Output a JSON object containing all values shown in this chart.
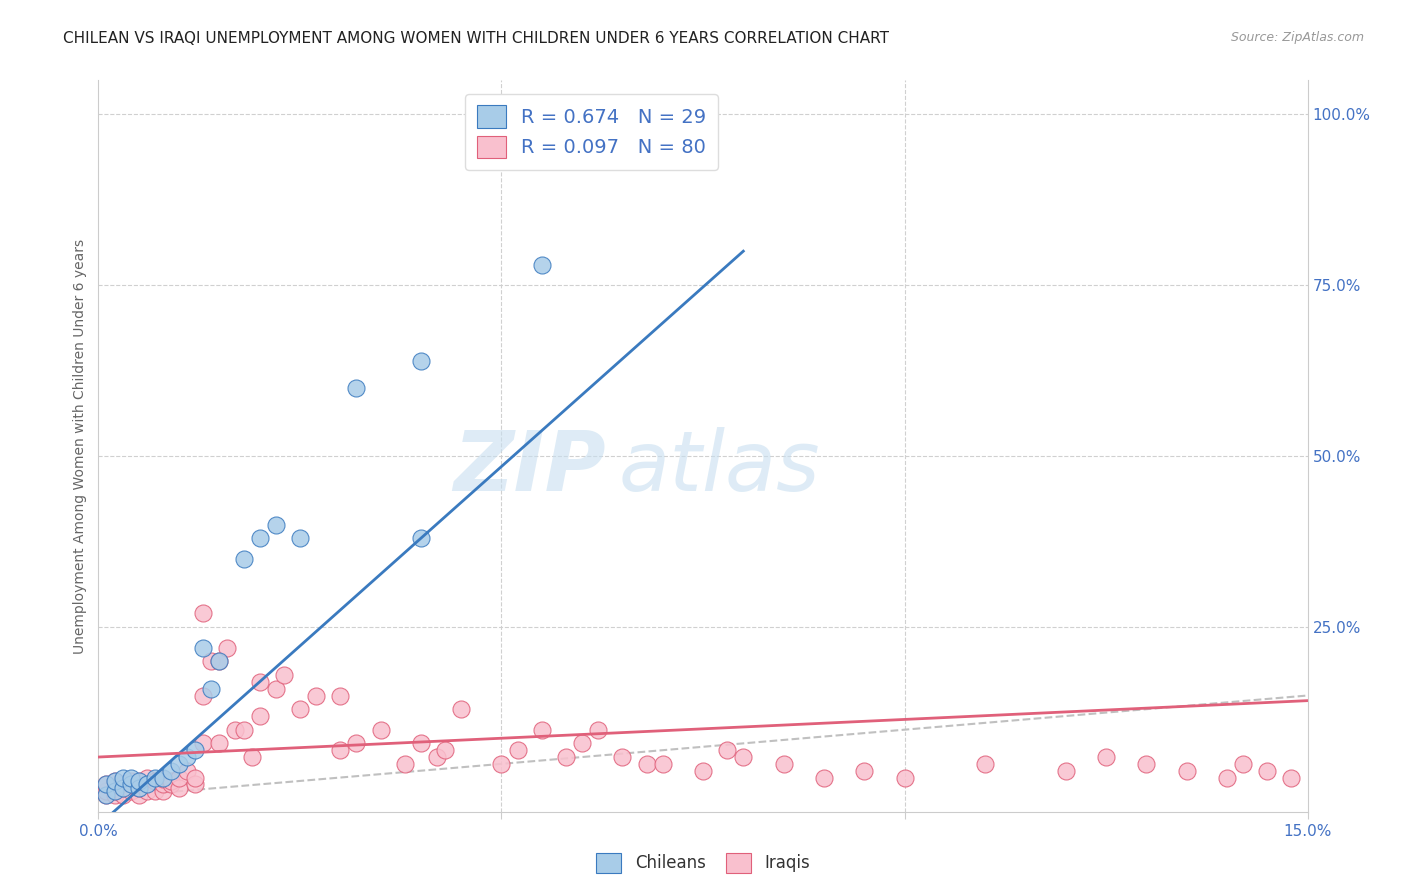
{
  "title": "CHILEAN VS IRAQI UNEMPLOYMENT AMONG WOMEN WITH CHILDREN UNDER 6 YEARS CORRELATION CHART",
  "source": "Source: ZipAtlas.com",
  "ylabel": "Unemployment Among Women with Children Under 6 years",
  "xlim": [
    0.0,
    0.15
  ],
  "ylim": [
    -0.02,
    1.05
  ],
  "chilean_color": "#a8cce8",
  "iraqi_color": "#f9c0ce",
  "chilean_line_color": "#3a7abf",
  "iraqi_line_color": "#e0607a",
  "diagonal_color": "#c0c0c0",
  "legend_R_chilean": "0.674",
  "legend_N_chilean": "29",
  "legend_R_iraqi": "0.097",
  "legend_N_iraqi": "80",
  "watermark_zip": "ZIP",
  "watermark_atlas": "atlas",
  "chilean_x": [
    0.001,
    0.001,
    0.002,
    0.002,
    0.003,
    0.003,
    0.004,
    0.004,
    0.005,
    0.005,
    0.006,
    0.007,
    0.008,
    0.009,
    0.01,
    0.011,
    0.012,
    0.013,
    0.014,
    0.015,
    0.018,
    0.02,
    0.022,
    0.025,
    0.032,
    0.04,
    0.04,
    0.055,
    0.06
  ],
  "chilean_y": [
    0.005,
    0.02,
    0.01,
    0.025,
    0.015,
    0.03,
    0.02,
    0.03,
    0.015,
    0.025,
    0.02,
    0.03,
    0.03,
    0.04,
    0.05,
    0.06,
    0.07,
    0.22,
    0.16,
    0.2,
    0.35,
    0.38,
    0.4,
    0.38,
    0.6,
    0.64,
    0.38,
    0.78,
    0.95
  ],
  "iraqi_x": [
    0.001,
    0.001,
    0.001,
    0.002,
    0.002,
    0.002,
    0.002,
    0.003,
    0.003,
    0.003,
    0.004,
    0.004,
    0.004,
    0.005,
    0.005,
    0.005,
    0.006,
    0.006,
    0.007,
    0.007,
    0.008,
    0.008,
    0.008,
    0.009,
    0.009,
    0.01,
    0.01,
    0.011,
    0.012,
    0.012,
    0.013,
    0.013,
    0.014,
    0.015,
    0.015,
    0.016,
    0.017,
    0.018,
    0.019,
    0.02,
    0.022,
    0.023,
    0.025,
    0.027,
    0.03,
    0.03,
    0.032,
    0.035,
    0.038,
    0.04,
    0.042,
    0.043,
    0.045,
    0.05,
    0.052,
    0.055,
    0.058,
    0.06,
    0.062,
    0.065,
    0.068,
    0.07,
    0.075,
    0.078,
    0.08,
    0.085,
    0.09,
    0.095,
    0.1,
    0.11,
    0.12,
    0.125,
    0.13,
    0.135,
    0.14,
    0.142,
    0.145,
    0.148,
    0.013,
    0.02
  ],
  "iraqi_y": [
    0.005,
    0.01,
    0.02,
    0.005,
    0.01,
    0.015,
    0.025,
    0.005,
    0.015,
    0.02,
    0.01,
    0.02,
    0.025,
    0.005,
    0.015,
    0.025,
    0.01,
    0.03,
    0.01,
    0.025,
    0.01,
    0.02,
    0.028,
    0.02,
    0.025,
    0.015,
    0.03,
    0.04,
    0.02,
    0.03,
    0.08,
    0.15,
    0.2,
    0.08,
    0.2,
    0.22,
    0.1,
    0.1,
    0.06,
    0.12,
    0.16,
    0.18,
    0.13,
    0.15,
    0.07,
    0.15,
    0.08,
    0.1,
    0.05,
    0.08,
    0.06,
    0.07,
    0.13,
    0.05,
    0.07,
    0.1,
    0.06,
    0.08,
    0.1,
    0.06,
    0.05,
    0.05,
    0.04,
    0.07,
    0.06,
    0.05,
    0.03,
    0.04,
    0.03,
    0.05,
    0.04,
    0.06,
    0.05,
    0.04,
    0.03,
    0.05,
    0.04,
    0.03,
    0.27,
    0.17
  ],
  "title_fontsize": 11,
  "source_fontsize": 9,
  "axis_label_fontsize": 10,
  "tick_fontsize": 11,
  "legend_fontsize": 14,
  "watermark_fontsize_zip": 60,
  "watermark_fontsize_atlas": 60,
  "background_color": "#ffffff",
  "grid_color": "#d0d0d0"
}
